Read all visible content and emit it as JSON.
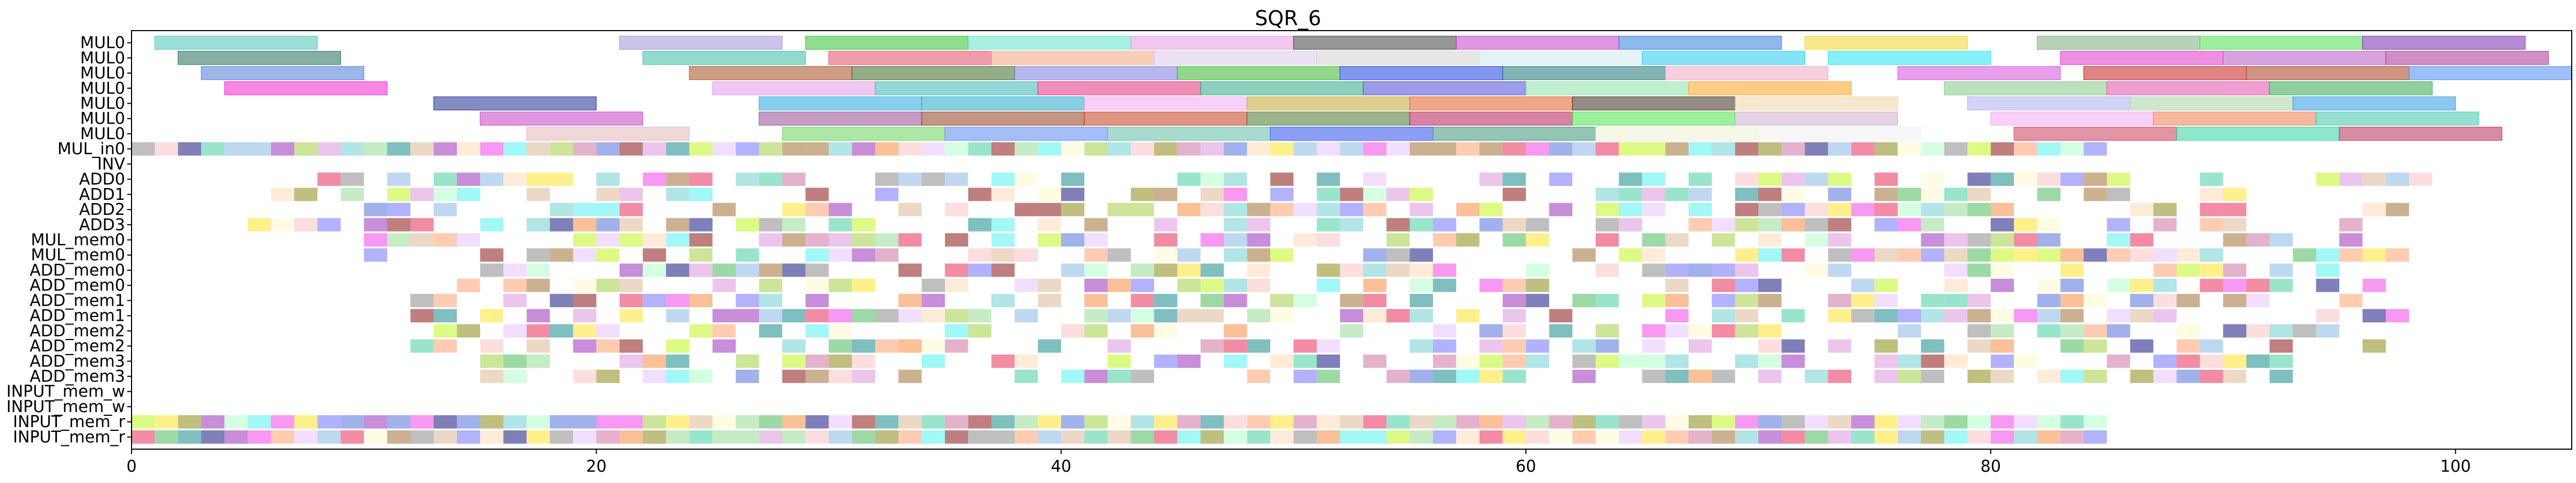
{
  "chart_data": {
    "type": "gantt",
    "title": "SQR_6",
    "xlabel": "",
    "ylabel": "",
    "xlim": [
      0,
      105
    ],
    "xticks": [
      0,
      20,
      40,
      60,
      80,
      100
    ],
    "rows": [
      "MUL0",
      "MUL0",
      "MUL0",
      "MUL0",
      "MUL0",
      "MUL0",
      "MUL0",
      "MUL_in0",
      "INV",
      "ADD0",
      "ADD1",
      "ADD2",
      "ADD3",
      "MUL_mem0",
      "MUL_mem0",
      "ADD_mem0",
      "ADD_mem0",
      "ADD_mem1",
      "ADD_mem1",
      "ADD_mem2",
      "ADD_mem2",
      "ADD_mem3",
      "ADD_mem3",
      "INPUT_mem_w",
      "INPUT_mem_w",
      "INPUT_mem_r",
      "INPUT_mem_r"
    ],
    "bar_alpha": 0.5,
    "long_tasks": [
      {
        "row": 0,
        "start": 1,
        "end": 8,
        "color": "#3cc0b0"
      },
      {
        "row": 0,
        "start": 21,
        "end": 28,
        "color": "#9b86d8"
      },
      {
        "row": 0,
        "start": 29,
        "end": 36,
        "color": "#1dbd1d"
      },
      {
        "row": 0,
        "start": 36,
        "end": 43,
        "color": "#4fe3c4"
      },
      {
        "row": 0,
        "start": 43,
        "end": 50,
        "color": "#e590e1"
      },
      {
        "row": 0,
        "start": 50,
        "end": 57,
        "color": "#2e2e2e"
      },
      {
        "row": 0,
        "start": 57,
        "end": 64,
        "color": "#c030c8"
      },
      {
        "row": 0,
        "start": 64,
        "end": 71,
        "color": "#1e6fd8"
      },
      {
        "row": 0,
        "start": 72,
        "end": 79,
        "color": "#f2d21a"
      },
      {
        "row": 0,
        "start": 82,
        "end": 89,
        "color": "#6fa66f"
      },
      {
        "row": 0,
        "start": 89,
        "end": 96,
        "color": "#3be03b"
      },
      {
        "row": 0,
        "start": 96,
        "end": 103,
        "color": "#6a1aa8"
      },
      {
        "row": 1,
        "start": 2,
        "end": 9,
        "color": "#0b5f4a"
      },
      {
        "row": 1,
        "start": 22,
        "end": 29,
        "color": "#26b89a"
      },
      {
        "row": 1,
        "start": 30,
        "end": 37,
        "color": "#e33a5a"
      },
      {
        "row": 1,
        "start": 37,
        "end": 44,
        "color": "#f0a070"
      },
      {
        "row": 1,
        "start": 44,
        "end": 51,
        "color": "#d6c3e6"
      },
      {
        "row": 1,
        "start": 51,
        "end": 58,
        "color": "#cfcfcf"
      },
      {
        "row": 1,
        "start": 58,
        "end": 65,
        "color": "#c8e8f0"
      },
      {
        "row": 1,
        "start": 65,
        "end": 72,
        "color": "#10c8f0"
      },
      {
        "row": 1,
        "start": 73,
        "end": 80,
        "color": "#10e0f0"
      },
      {
        "row": 1,
        "start": 83,
        "end": 90,
        "color": "#e020c0"
      },
      {
        "row": 1,
        "start": 90,
        "end": 97,
        "color": "#b04ac0"
      },
      {
        "row": 1,
        "start": 97,
        "end": 104,
        "color": "#a0208a"
      },
      {
        "row": 2,
        "start": 3,
        "end": 10,
        "color": "#3a70d0"
      },
      {
        "row": 2,
        "start": 24,
        "end": 31,
        "color": "#a03a0a"
      },
      {
        "row": 2,
        "start": 31,
        "end": 38,
        "color": "#2a5a10"
      },
      {
        "row": 2,
        "start": 38,
        "end": 45,
        "color": "#7070e0"
      },
      {
        "row": 2,
        "start": 45,
        "end": 52,
        "color": "#2ab01a"
      },
      {
        "row": 2,
        "start": 52,
        "end": 59,
        "color": "#0a30e0"
      },
      {
        "row": 2,
        "start": 59,
        "end": 66,
        "color": "#0a6a6a"
      },
      {
        "row": 2,
        "start": 66,
        "end": 73,
        "color": "#f0a0c0"
      },
      {
        "row": 2,
        "start": 76,
        "end": 83,
        "color": "#d040d8"
      },
      {
        "row": 2,
        "start": 84,
        "end": 91,
        "color": "#c00a0a"
      },
      {
        "row": 2,
        "start": 91,
        "end": 98,
        "color": "#a02a0a"
      },
      {
        "row": 2,
        "start": 98,
        "end": 105,
        "color": "#3a80f0"
      },
      {
        "row": 3,
        "start": 4,
        "end": 11,
        "color": "#f010c8"
      },
      {
        "row": 3,
        "start": 25,
        "end": 32,
        "color": "#e090e8"
      },
      {
        "row": 3,
        "start": 32,
        "end": 39,
        "color": "#2ab0b0"
      },
      {
        "row": 3,
        "start": 39,
        "end": 46,
        "color": "#e02070"
      },
      {
        "row": 3,
        "start": 46,
        "end": 53,
        "color": "#1aa07a"
      },
      {
        "row": 3,
        "start": 53,
        "end": 60,
        "color": "#3a3ad0"
      },
      {
        "row": 3,
        "start": 60,
        "end": 67,
        "color": "#7fe0a0"
      },
      {
        "row": 3,
        "start": 67,
        "end": 74,
        "color": "#ff9a0a"
      },
      {
        "row": 3,
        "start": 78,
        "end": 85,
        "color": "#7ac07a"
      },
      {
        "row": 3,
        "start": 85,
        "end": 92,
        "color": "#e040a0"
      },
      {
        "row": 3,
        "start": 92,
        "end": 99,
        "color": "#20a040"
      },
      {
        "row": 4,
        "start": 13,
        "end": 20,
        "color": "#0a1a8a"
      },
      {
        "row": 4,
        "start": 27,
        "end": 34,
        "color": "#10a0e0"
      },
      {
        "row": 4,
        "start": 34,
        "end": 41,
        "color": "#10a0c8"
      },
      {
        "row": 4,
        "start": 41,
        "end": 48,
        "color": "#f0a0f0"
      },
      {
        "row": 4,
        "start": 48,
        "end": 55,
        "color": "#c0a020"
      },
      {
        "row": 4,
        "start": 55,
        "end": 62,
        "color": "#e05010"
      },
      {
        "row": 4,
        "start": 62,
        "end": 69,
        "color": "#2a1a0a"
      },
      {
        "row": 4,
        "start": 69,
        "end": 76,
        "color": "#f0d0a0"
      },
      {
        "row": 4,
        "start": 79,
        "end": 86,
        "color": "#a8a8f0"
      },
      {
        "row": 4,
        "start": 86,
        "end": 93,
        "color": "#a0d0a0"
      },
      {
        "row": 4,
        "start": 93,
        "end": 100,
        "color": "#1a90e0"
      },
      {
        "row": 5,
        "start": 15,
        "end": 22,
        "color": "#c030c0"
      },
      {
        "row": 5,
        "start": 27,
        "end": 34,
        "color": "#8a3a8a"
      },
      {
        "row": 5,
        "start": 34,
        "end": 41,
        "color": "#8a2a0a"
      },
      {
        "row": 5,
        "start": 41,
        "end": 48,
        "color": "#c02a0a"
      },
      {
        "row": 5,
        "start": 48,
        "end": 55,
        "color": "#3a6a1a"
      },
      {
        "row": 5,
        "start": 55,
        "end": 62,
        "color": "#b00a4a"
      },
      {
        "row": 5,
        "start": 62,
        "end": 69,
        "color": "#3ae03a"
      },
      {
        "row": 5,
        "start": 69,
        "end": 76,
        "color": "#c8a8c8"
      },
      {
        "row": 5,
        "start": 80,
        "end": 87,
        "color": "#f0a0f0"
      },
      {
        "row": 5,
        "start": 87,
        "end": 94,
        "color": "#f07040"
      },
      {
        "row": 5,
        "start": 94,
        "end": 101,
        "color": "#30c0a0"
      },
      {
        "row": 6,
        "start": 17,
        "end": 24,
        "color": "#e0b0b0"
      },
      {
        "row": 6,
        "start": 28,
        "end": 35,
        "color": "#5ad04a"
      },
      {
        "row": 6,
        "start": 35,
        "end": 42,
        "color": "#4a80f0"
      },
      {
        "row": 6,
        "start": 42,
        "end": 49,
        "color": "#50b8a0"
      },
      {
        "row": 6,
        "start": 49,
        "end": 56,
        "color": "#1a40f0"
      },
      {
        "row": 6,
        "start": 56,
        "end": 63,
        "color": "#2a8a6a"
      },
      {
        "row": 6,
        "start": 63,
        "end": 70,
        "color": "#f0f0d0"
      },
      {
        "row": 6,
        "start": 70,
        "end": 77,
        "color": "#f0f0f0"
      },
      {
        "row": 6,
        "start": 81,
        "end": 88,
        "color": "#c82a4a"
      },
      {
        "row": 6,
        "start": 88,
        "end": 95,
        "color": "#1ad09a"
      },
      {
        "row": 6,
        "start": 95,
        "end": 102,
        "color": "#b01a4a"
      }
    ],
    "short_tasks_note": "",
    "short_row_extents": [
      {
        "row": 7,
        "start": 0,
        "end": 85
      },
      {
        "row": 8,
        "start": 0,
        "end": 0
      },
      {
        "row": 9,
        "start": 8,
        "end": 99
      },
      {
        "row": 10,
        "start": 6,
        "end": 97
      },
      {
        "row": 11,
        "start": 10,
        "end": 98
      },
      {
        "row": 12,
        "start": 5,
        "end": 97
      },
      {
        "row": 13,
        "start": 10,
        "end": 98
      },
      {
        "row": 14,
        "start": 10,
        "end": 98
      },
      {
        "row": 15,
        "start": 14,
        "end": 98
      },
      {
        "row": 16,
        "start": 14,
        "end": 97
      },
      {
        "row": 17,
        "start": 12,
        "end": 98
      },
      {
        "row": 18,
        "start": 12,
        "end": 98
      },
      {
        "row": 19,
        "start": 12,
        "end": 98
      },
      {
        "row": 20,
        "start": 12,
        "end": 97
      },
      {
        "row": 21,
        "start": 15,
        "end": 93
      },
      {
        "row": 22,
        "start": 15,
        "end": 93
      },
      {
        "row": 23,
        "start": 0,
        "end": 0
      },
      {
        "row": 24,
        "start": 0,
        "end": 0
      },
      {
        "row": 25,
        "start": 0,
        "end": 85
      },
      {
        "row": 26,
        "start": 0,
        "end": 85
      }
    ],
    "palette": [
      "#e6194b",
      "#3cb44b",
      "#ffe119",
      "#4363d8",
      "#f58231",
      "#911eb4",
      "#46f0f0",
      "#f032e6",
      "#bcf60c",
      "#fabebe",
      "#008080",
      "#e6beff",
      "#9a6324",
      "#fffac8",
      "#800000",
      "#aaffc3",
      "#808000",
      "#ffd8b1",
      "#000075",
      "#808080",
      "#7fb2e6",
      "#d98cd9",
      "#8cd98c",
      "#d9b38c",
      "#66cccc",
      "#cc6699",
      "#99cc33",
      "#6666ff",
      "#ff9966",
      "#33cc99"
    ]
  }
}
